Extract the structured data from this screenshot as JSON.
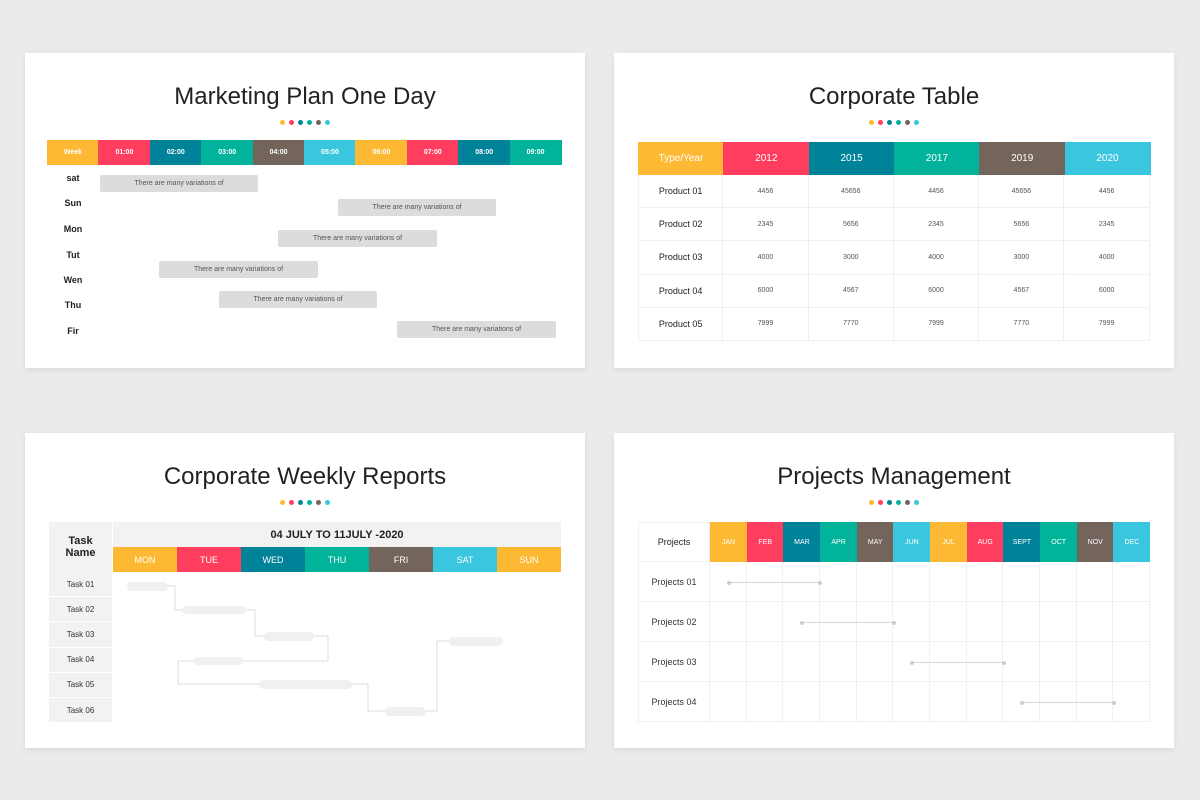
{
  "colors": {
    "yellow": "#FDB933",
    "red": "#FF3D5F",
    "darkteal": "#008299",
    "green": "#00B39A",
    "brown": "#73655C",
    "cyan": "#3BC6E0"
  },
  "dot_colors": [
    "#FDB933",
    "#FF3D5F",
    "#008299",
    "#00B39A",
    "#73655C",
    "#3BC6E0"
  ],
  "marketing": {
    "title": "Marketing Plan One Day",
    "header": [
      "Week",
      "01:00",
      "02:00",
      "03:00",
      "04:00",
      "05:00",
      "06:00",
      "07:00",
      "08:00",
      "09:00"
    ],
    "days": [
      "sat",
      "Sun",
      "Mon",
      "Tut",
      "Wen",
      "Thu",
      "Fir"
    ],
    "bar_text": "There are many variations of"
  },
  "corporate_table": {
    "title": "Corporate Table",
    "header": [
      "Type/Year",
      "2012",
      "2015",
      "2017",
      "2019",
      "2020"
    ],
    "rows": [
      [
        "Product 01",
        "4456",
        "45656",
        "4456",
        "45656",
        "4456"
      ],
      [
        "Product 02",
        "2345",
        "5656",
        "2345",
        "5656",
        "2345"
      ],
      [
        "Product 03",
        "4000",
        "3000",
        "4000",
        "3000",
        "4000"
      ],
      [
        "Product 04",
        "6000",
        "4567",
        "6000",
        "4567",
        "6000"
      ],
      [
        "Product 05",
        "7999",
        "7770",
        "7999",
        "7770",
        "7999"
      ]
    ]
  },
  "weekly": {
    "title": "Corporate Weekly Reports",
    "task_header": "Task Name",
    "range": "04 JULY TO 11JULY -2020",
    "days": [
      "MON",
      "TUE",
      "WED",
      "THU",
      "FRI",
      "SAT",
      "SUN"
    ],
    "tasks": [
      "Task 01",
      "Task 02",
      "Task 03",
      "Task 04",
      "Task 05",
      "Task 06"
    ]
  },
  "projects": {
    "title": "Projects Management",
    "header": "Projects",
    "months": [
      "JAN",
      "FEB",
      "MAR",
      "APR",
      "MAY",
      "JUN",
      "JUL",
      "AUG",
      "SEPT",
      "OCT",
      "NOV",
      "DEC"
    ],
    "rows": [
      {
        "label": "Projects 01",
        "start": "JAN",
        "end": "MAR"
      },
      {
        "label": "Projects 02",
        "start": "MAR",
        "end": "MAY"
      },
      {
        "label": "Projects 03",
        "start": "JUN",
        "end": "AUG"
      },
      {
        "label": "Projects 04",
        "start": "SEPT",
        "end": "NOV"
      }
    ]
  }
}
